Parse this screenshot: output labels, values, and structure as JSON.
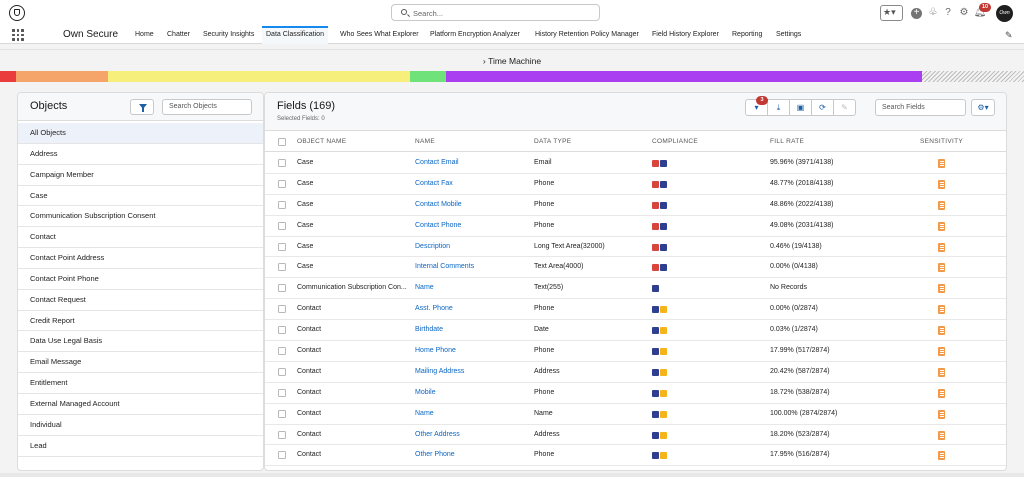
{
  "colors": {
    "accent": "#1589ee",
    "link": "#0b66c3",
    "badge_red": "#c23934",
    "gdpr_red": "#d8453d",
    "ccpa_navy": "#2e3f8f",
    "hipaa_yellow": "#f4b41a",
    "sensitivity_orange": "#f39a48"
  },
  "header": {
    "search_placeholder": "Search...",
    "notification_count": "10",
    "avatar_text": "Own"
  },
  "nav": {
    "app_name": "Own Secure",
    "tabs": [
      {
        "label": "Home"
      },
      {
        "label": "Chatter"
      },
      {
        "label": "Security Insights"
      },
      {
        "label": "Data Classification"
      },
      {
        "label": "Who Sees What Explorer"
      },
      {
        "label": "Platform Encryption Analyzer"
      },
      {
        "label": "History Retention Policy Manager"
      },
      {
        "label": "Field History Explorer"
      },
      {
        "label": "Reporting"
      },
      {
        "label": "Settings"
      }
    ],
    "active_tab": "Data Classification"
  },
  "time_machine": {
    "label": "Time Machine",
    "icon": "chevron-right-icon"
  },
  "heat_strip": {
    "segments": [
      {
        "color": "#ea3c3c",
        "share": 0.016
      },
      {
        "color": "#f6a56a",
        "share": 0.09
      },
      {
        "color": "#f6ef7c",
        "share": 0.295
      },
      {
        "color": "#6fe27a",
        "share": 0.035
      },
      {
        "color": "#a93ff0",
        "share": 0.465
      },
      {
        "color": "#d6d6d6",
        "share": 0.099,
        "pattern": "hatched"
      }
    ]
  },
  "objects": {
    "title": "Objects",
    "search_placeholder": "Search Objects",
    "items": [
      "All Objects",
      "Address",
      "Campaign Member",
      "Case",
      "Communication Subscription Consent",
      "Contact",
      "Contact Point Address",
      "Contact Point Phone",
      "Contact Request",
      "Credit Report",
      "Data Use Legal Basis",
      "Email Message",
      "Entitlement",
      "External Managed Account",
      "Individual",
      "Lead"
    ],
    "selected_index": 0
  },
  "fields": {
    "title": "Fields (169)",
    "selected_text": "Selected Fields: 0",
    "filter_badge": "3",
    "search_placeholder": "Search Fields",
    "columns": [
      "OBJECT NAME",
      "NAME",
      "DATA TYPE",
      "COMPLIANCE",
      "FILL RATE",
      "SENSITIVITY"
    ],
    "rows": [
      {
        "object": "Case",
        "name": "Contact Email",
        "type": "Email",
        "compliance": [
          "gdpr",
          "ccpa"
        ],
        "fill": "95.96% (3971/4138)"
      },
      {
        "object": "Case",
        "name": "Contact Fax",
        "type": "Phone",
        "compliance": [
          "gdpr",
          "ccpa"
        ],
        "fill": "48.77% (2018/4138)"
      },
      {
        "object": "Case",
        "name": "Contact Mobile",
        "type": "Phone",
        "compliance": [
          "gdpr",
          "ccpa"
        ],
        "fill": "48.86% (2022/4138)"
      },
      {
        "object": "Case",
        "name": "Contact Phone",
        "type": "Phone",
        "compliance": [
          "gdpr",
          "ccpa"
        ],
        "fill": "49.08% (2031/4138)"
      },
      {
        "object": "Case",
        "name": "Description",
        "type": "Long Text Area(32000)",
        "compliance": [
          "gdpr",
          "ccpa"
        ],
        "fill": "0.46% (19/4138)"
      },
      {
        "object": "Case",
        "name": "Internal Comments",
        "type": "Text Area(4000)",
        "compliance": [
          "gdpr",
          "ccpa"
        ],
        "fill": "0.00% (0/4138)"
      },
      {
        "object": "Communication Subscription Con...",
        "name": "Name",
        "type": "Text(255)",
        "compliance": [
          "ccpa"
        ],
        "fill": "No Records"
      },
      {
        "object": "Contact",
        "name": "Asst. Phone",
        "type": "Phone",
        "compliance": [
          "ccpa",
          "hipaa"
        ],
        "fill": "0.00% (0/2874)"
      },
      {
        "object": "Contact",
        "name": "Birthdate",
        "type": "Date",
        "compliance": [
          "ccpa",
          "hipaa"
        ],
        "fill": "0.03% (1/2874)"
      },
      {
        "object": "Contact",
        "name": "Home Phone",
        "type": "Phone",
        "compliance": [
          "ccpa",
          "hipaa"
        ],
        "fill": "17.99% (517/2874)"
      },
      {
        "object": "Contact",
        "name": "Mailing Address",
        "type": "Address",
        "compliance": [
          "ccpa",
          "hipaa"
        ],
        "fill": "20.42% (587/2874)"
      },
      {
        "object": "Contact",
        "name": "Mobile",
        "type": "Phone",
        "compliance": [
          "ccpa",
          "hipaa"
        ],
        "fill": "18.72% (538/2874)"
      },
      {
        "object": "Contact",
        "name": "Name",
        "type": "Name",
        "compliance": [
          "ccpa",
          "hipaa"
        ],
        "fill": "100.00% (2874/2874)"
      },
      {
        "object": "Contact",
        "name": "Other Address",
        "type": "Address",
        "compliance": [
          "ccpa",
          "hipaa"
        ],
        "fill": "18.20% (523/2874)"
      },
      {
        "object": "Contact",
        "name": "Other Phone",
        "type": "Phone",
        "compliance": [
          "ccpa",
          "hipaa"
        ],
        "fill": "17.95% (516/2874)"
      }
    ]
  }
}
